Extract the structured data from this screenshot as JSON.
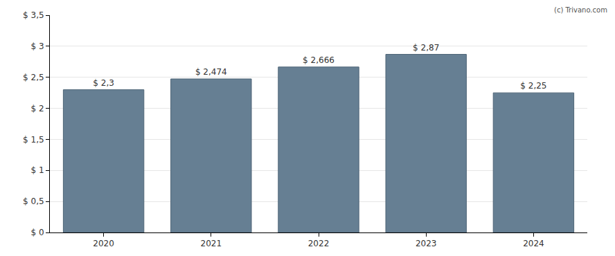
{
  "chart_data": {
    "type": "bar",
    "categories": [
      "2020",
      "2021",
      "2022",
      "2023",
      "2024"
    ],
    "values": [
      2.3,
      2.474,
      2.666,
      2.87,
      2.25
    ],
    "value_labels": [
      "$ 2,3",
      "$ 2,474",
      "$ 2,666",
      "$ 2,87",
      "$ 2,25"
    ],
    "data_labels": true,
    "color": "#667f93",
    "ylim": [
      0,
      3.5
    ],
    "yticks": [
      {
        "value": 0,
        "label": "$ 0"
      },
      {
        "value": 0.5,
        "label": "$ 0,5"
      },
      {
        "value": 1,
        "label": "$ 1"
      },
      {
        "value": 1.5,
        "label": "$ 1,5"
      },
      {
        "value": 2,
        "label": "$ 2"
      },
      {
        "value": 2.5,
        "label": "$ 2,5"
      },
      {
        "value": 3,
        "label": "$ 3"
      },
      {
        "value": 3.5,
        "label": "$ 3,5"
      }
    ],
    "grid": true,
    "annotations": [
      "(c) Trivano.com"
    ]
  }
}
